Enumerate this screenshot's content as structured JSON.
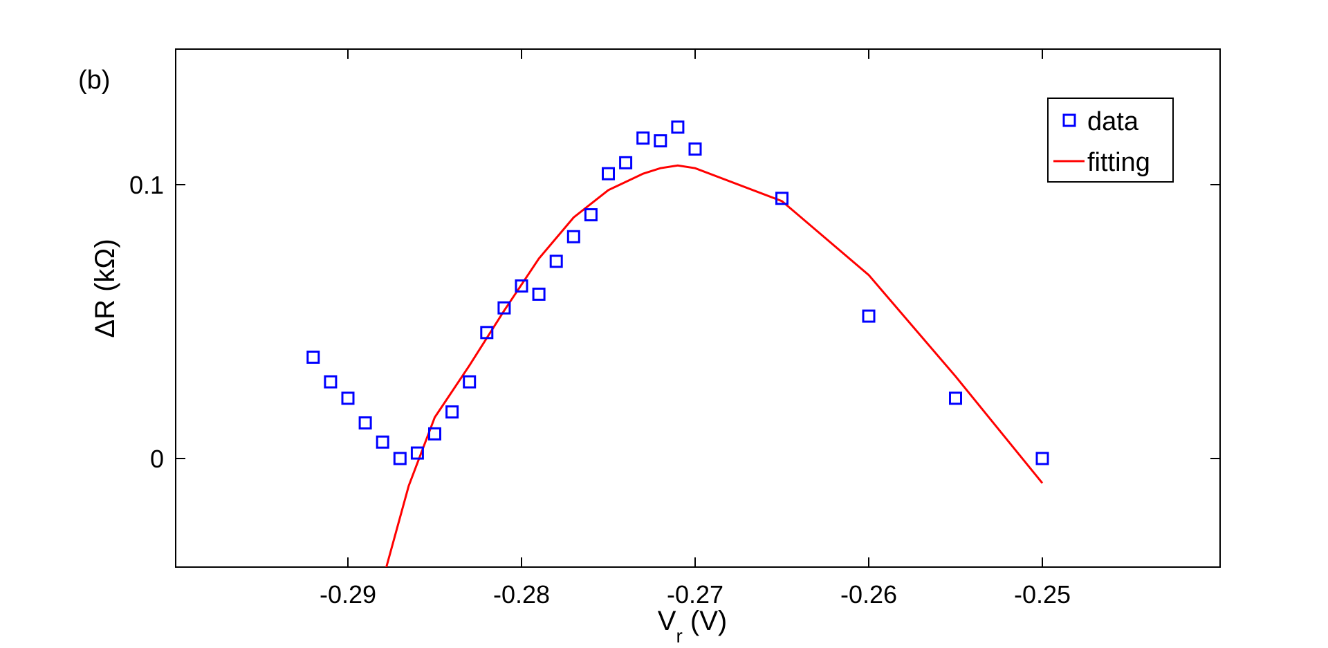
{
  "chart_data": {
    "type": "scatter",
    "panel_label": "(b)",
    "xlabel_main": "V",
    "xlabel_sub": "r",
    "xlabel_unit": " (V)",
    "ylabel": "ΔR (kΩ)",
    "xlim": [
      -0.29,
      -0.25
    ],
    "ylim": [
      -0.04,
      0.15
    ],
    "xticks": [
      -0.29,
      -0.28,
      -0.27,
      -0.26,
      -0.25
    ],
    "xtick_labels": [
      "-0.29",
      "-0.28",
      "-0.27",
      "-0.26",
      "-0.25"
    ],
    "yticks": [
      0,
      0.1
    ],
    "ytick_labels": [
      "0",
      "0.1"
    ],
    "grid": false,
    "legend_position": "top-right",
    "series": [
      {
        "name": "data",
        "kind": "markers",
        "marker": "square",
        "color": "#0000ff",
        "x": [
          -0.292,
          -0.291,
          -0.29,
          -0.289,
          -0.288,
          -0.287,
          -0.286,
          -0.285,
          -0.284,
          -0.283,
          -0.282,
          -0.281,
          -0.28,
          -0.279,
          -0.278,
          -0.277,
          -0.276,
          -0.275,
          -0.274,
          -0.273,
          -0.272,
          -0.271,
          -0.27,
          -0.265,
          -0.26,
          -0.255,
          -0.25
        ],
        "y": [
          0.037,
          0.028,
          0.022,
          0.013,
          0.006,
          0.0,
          0.002,
          0.009,
          0.017,
          0.028,
          0.046,
          0.055,
          0.063,
          0.06,
          0.072,
          0.081,
          0.089,
          0.104,
          0.108,
          0.117,
          0.116,
          0.121,
          0.113,
          0.095,
          0.052,
          0.022,
          0.0
        ]
      },
      {
        "name": "fitting",
        "kind": "line",
        "color": "#ff0000",
        "x": [
          -0.2878,
          -0.2865,
          -0.285,
          -0.283,
          -0.281,
          -0.279,
          -0.277,
          -0.275,
          -0.273,
          -0.272,
          -0.271,
          -0.27,
          -0.265,
          -0.26,
          -0.255,
          -0.25
        ],
        "y": [
          -0.04,
          -0.01,
          0.015,
          0.034,
          0.054,
          0.073,
          0.088,
          0.098,
          0.104,
          0.106,
          0.107,
          0.106,
          0.094,
          0.067,
          0.03,
          -0.009
        ]
      }
    ]
  }
}
